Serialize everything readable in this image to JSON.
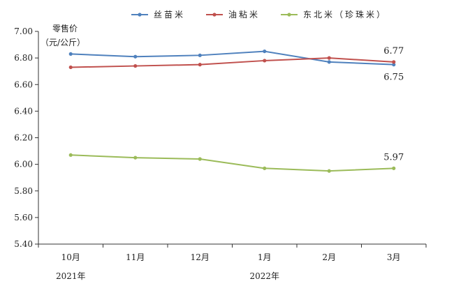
{
  "chart_data": {
    "type": "line",
    "categories": [
      "10月",
      "11月",
      "12月",
      "1月",
      "2月",
      "3月"
    ],
    "year_labels": [
      {
        "text": "2021年",
        "span": [
          0,
          0
        ]
      },
      {
        "text": "2022年",
        "span": [
          1,
          5
        ]
      }
    ],
    "ylabel_lines": [
      "零售价",
      "（元/公斤）"
    ],
    "ylim": [
      5.4,
      7.0
    ],
    "yticks": [
      "5.40",
      "5.60",
      "5.80",
      "6.00",
      "6.20",
      "6.40",
      "6.60",
      "6.80",
      "7.00"
    ],
    "legend_position": "top-center",
    "grid": false,
    "series": [
      {
        "name": "丝苗米",
        "color": "#4f81bd",
        "values": [
          6.83,
          6.81,
          6.82,
          6.85,
          6.77,
          6.75
        ]
      },
      {
        "name": "油粘米",
        "color": "#c0504d",
        "values": [
          6.73,
          6.74,
          6.75,
          6.78,
          6.8,
          6.77
        ]
      },
      {
        "name": "东北米（珍珠米）",
        "color": "#9bbb59",
        "values": [
          6.07,
          6.05,
          6.04,
          5.97,
          5.95,
          5.97
        ]
      }
    ],
    "annotations": [
      {
        "text": "6.77",
        "category_index": 5,
        "value": 6.77,
        "placement": "above"
      },
      {
        "text": "6.75",
        "category_index": 5,
        "value": 6.75,
        "placement": "below"
      },
      {
        "text": "5.97",
        "category_index": 5,
        "value": 5.97,
        "placement": "above"
      }
    ]
  }
}
